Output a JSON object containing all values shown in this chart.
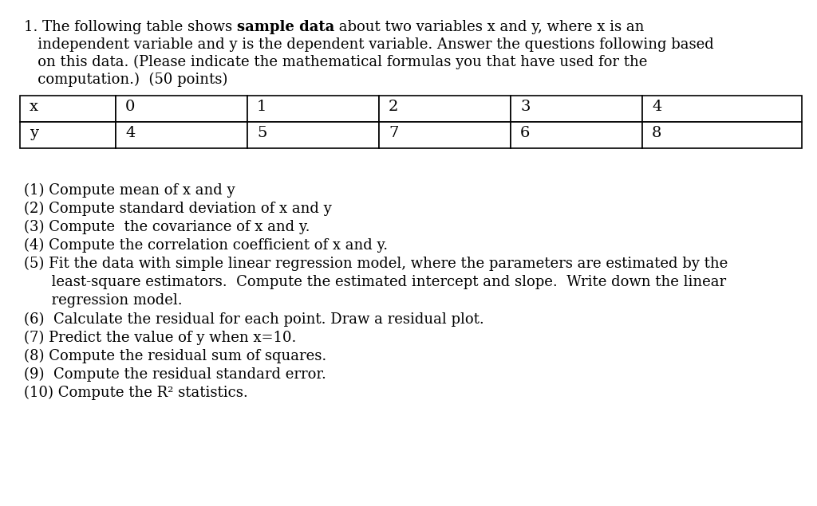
{
  "background_color": "#ffffff",
  "table_headers": [
    "x",
    "0",
    "1",
    "2",
    "3",
    "4"
  ],
  "table_row2": [
    "y",
    "4",
    "5",
    "7",
    "6",
    "8"
  ],
  "questions": [
    "(1) Compute mean of x and y",
    "(2) Compute standard deviation of x and y",
    "(3) Compute  the covariance of x and y.",
    "(4) Compute the correlation coefficient of x and y.",
    "(5) Fit the data with simple linear regression model, where the parameters are estimated by the",
    "      least-square estimators.  Compute the estimated intercept and slope.  Write down the linear",
    "      regression model.",
    "(6)  Calculate the residual for each point. Draw a residual plot.",
    "(7) Predict the value of y when x=10.",
    "(8) Compute the residual sum of squares.",
    "(9)  Compute the residual standard error.",
    "(10) Compute the R² statistics."
  ],
  "font_size": 13.0,
  "text_color": "#000000",
  "line1_normal1": "1. The following table shows ",
  "line1_bold": "sample data",
  "line1_normal2": " about two variables x and y, where x is an",
  "line2": "   independent variable and y is the dependent variable. Answer the questions following based",
  "line3": "   on this data. (Please indicate the mathematical formulas you that have used for the",
  "line4": "   computation.)  (50 points)"
}
